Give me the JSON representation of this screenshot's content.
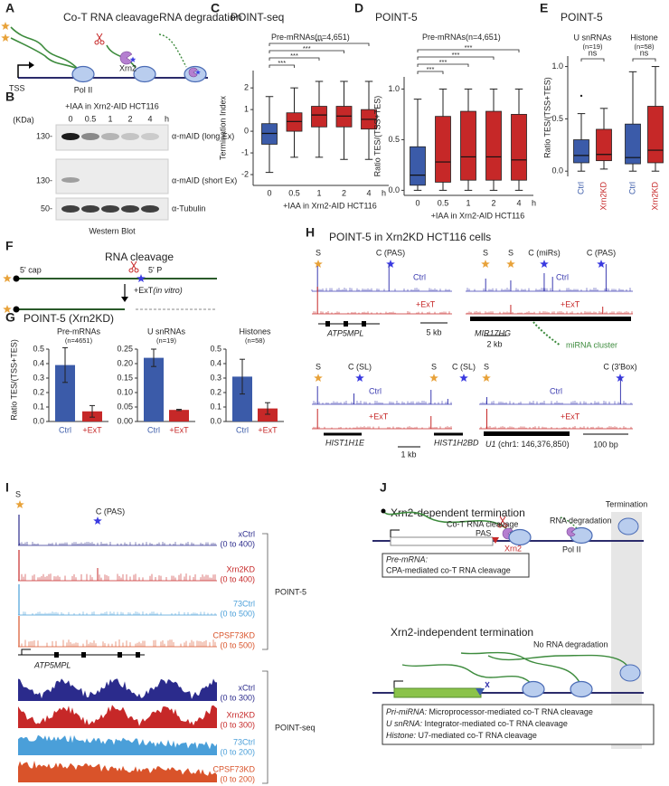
{
  "panel_labels": [
    "A",
    "B",
    "C",
    "D",
    "E",
    "F",
    "G",
    "H",
    "I",
    "J"
  ],
  "panel_a": {
    "cleavage": "Co-T RNA cleavage",
    "degradation": "RNA degradation",
    "tss": "TSS",
    "pol": "Pol II",
    "xrn2": "Xrn2"
  },
  "panel_b": {
    "treatment": "+IAA in Xrn2-AID HCT116",
    "lanes": [
      "0",
      "0.5",
      "1",
      "2",
      "4"
    ],
    "unit": "h",
    "kda": "(KDa)",
    "markers": [
      "130-",
      "130-",
      "50-"
    ],
    "blots": [
      "α-mAID (long Ex)",
      "α-mAID (short Ex)",
      "α-Tubulin"
    ],
    "caption": "Western Blot"
  },
  "panel_f": {
    "cleavage": "RNA cleavage",
    "cap": "5' cap",
    "phosphate": "5' P",
    "treatment": "+ExT",
    "condition": "(in vitro)"
  },
  "panel_g": {
    "title": "POINT-5 (Xrn2KD)"
  },
  "panel_h": {
    "title": "POINT-5 in Xrn2KD HCT116 cells",
    "examples": [
      {
        "sites": [
          "S",
          "C (PAS)"
        ],
        "ctrl": "Ctrl",
        "ext": "+ExT",
        "genes": [
          "ATP5MPL"
        ],
        "scale": "5 kb"
      },
      {
        "sites": [
          "S",
          "S",
          "C (miRs)",
          "C (PAS)"
        ],
        "ctrl": "Ctrl",
        "ext": "+ExT",
        "genes": [
          "MIR17HG"
        ],
        "scale": "2 kb",
        "note": "miRNA cluster"
      },
      {
        "sites": [
          "S",
          "C (SL)",
          "S",
          "C (SL)"
        ],
        "ctrl": "Ctrl",
        "ext": "+ExT",
        "genes": [
          "HIST1H1E",
          "HIST1H2BD"
        ],
        "scale": "1 kb"
      },
      {
        "sites": [
          "S",
          "C (3'Box)"
        ],
        "ctrl": "Ctrl",
        "ext": "+ExT",
        "genes": [
          "U1"
        ],
        "locus": " (chr1: 146,376,850)",
        "scale": "100 bp"
      }
    ]
  },
  "panel_i": {
    "sites": [
      "S",
      "C (PAS)"
    ],
    "gene": "ATP5MPL",
    "groups": [
      "POINT-5",
      "POINT-seq"
    ],
    "tracks": [
      {
        "name": "xCtrl",
        "range": "(0 to 400)",
        "color": "#2b2b8c"
      },
      {
        "name": "Xrn2KD",
        "range": "(0 to 400)",
        "color": "#c62828"
      },
      {
        "name": "73Ctrl",
        "range": "(0 to 500)",
        "color": "#4a9fd9"
      },
      {
        "name": "CPSF73KD",
        "range": "(0 to 500)",
        "color": "#d9532a"
      },
      {
        "name": "xCtrl",
        "range": "(0 to 300)",
        "color": "#2b2b8c"
      },
      {
        "name": "Xrn2KD",
        "range": "(0 to 300)",
        "color": "#c62828"
      },
      {
        "name": "73Ctrl",
        "range": "(0 to 200)",
        "color": "#4a9fd9"
      },
      {
        "name": "CPSF73KD",
        "range": "(0 to 200)",
        "color": "#d9532a"
      }
    ]
  },
  "panel_j": {
    "dependent": {
      "title": "Xrn2-dependent termination",
      "cleavage": "Co-T RNA cleavage",
      "degradation": "RNA degradation",
      "termination": "Termination",
      "pas": "PAS",
      "xrn2": "Xrn2",
      "pol": "Pol II",
      "notes": [
        {
          "name": "Pre-mRNA:",
          "text": "CPA-mediated co-T RNA cleavage"
        }
      ]
    },
    "independent": {
      "title": "Xrn2-independent termination",
      "degradation": "No RNA degradation",
      "notes": [
        {
          "name": "Pri-miRNA:",
          "text": " Microprocessor-mediated co-T RNA cleavage"
        },
        {
          "name": "U snRNA:",
          "text": " Integrator-mediated co-T RNA cleavage"
        },
        {
          "name": "Histone:",
          "text": " U7-mediated co-T RNA cleavage"
        }
      ]
    }
  },
  "chart_data": [
    {
      "type": "box",
      "title": "POINT-seq",
      "subtitle": "Pre-mRNAs",
      "n_label": "(n=4,651)",
      "ylabel": "Termination Index",
      "xlabel": "+IAA in Xrn2-AID HCT116",
      "categories": [
        "0",
        "0.5",
        "1",
        "2",
        "4"
      ],
      "x_unit": "h",
      "ylim": [
        -2.5,
        2.8
      ],
      "yticks": [
        -2,
        -1,
        0,
        1,
        2
      ],
      "boxes": [
        {
          "color": "#3b5ba9",
          "whislo": -1.9,
          "q1": -0.6,
          "med": -0.1,
          "q3": 0.35,
          "whishi": 1.6
        },
        {
          "color": "#c62828",
          "whislo": -1.2,
          "q1": 0.0,
          "med": 0.45,
          "q3": 0.85,
          "whishi": 2.0
        },
        {
          "color": "#c62828",
          "whislo": -1.2,
          "q1": 0.2,
          "med": 0.75,
          "q3": 1.15,
          "whishi": 2.3
        },
        {
          "color": "#c62828",
          "whislo": -1.3,
          "q1": 0.2,
          "med": 0.7,
          "q3": 1.15,
          "whishi": 2.3
        },
        {
          "color": "#c62828",
          "whislo": -1.3,
          "q1": 0.1,
          "med": 0.55,
          "q3": 1.0,
          "whishi": 2.3
        }
      ],
      "significance": [
        "***",
        "***",
        "***",
        "***"
      ]
    },
    {
      "type": "box",
      "title": "POINT-5",
      "subtitle": "Pre-mRNAs",
      "n_label": "(n=4,651)",
      "ylabel": "Ratio TES/(TSS+TES)",
      "xlabel": "+IAA in Xrn2-AID HCT116",
      "categories": [
        "0",
        "0.5",
        "1",
        "2",
        "4"
      ],
      "x_unit": "h",
      "ylim": [
        -0.05,
        1.12
      ],
      "yticks": [
        {
          "value": 0,
          "label": "0.0"
        },
        0.5,
        {
          "value": 1,
          "label": "1.0"
        }
      ],
      "boxes": [
        {
          "color": "#3b5ba9",
          "whislo": 0.0,
          "q1": 0.05,
          "med": 0.15,
          "q3": 0.43,
          "whishi": 0.9
        },
        {
          "color": "#c62828",
          "whislo": 0.0,
          "q1": 0.08,
          "med": 0.28,
          "q3": 0.73,
          "whishi": 1.0
        },
        {
          "color": "#c62828",
          "whislo": 0.0,
          "q1": 0.1,
          "med": 0.33,
          "q3": 0.78,
          "whishi": 1.0
        },
        {
          "color": "#c62828",
          "whislo": 0.0,
          "q1": 0.1,
          "med": 0.33,
          "q3": 0.78,
          "whishi": 1.0
        },
        {
          "color": "#c62828",
          "whislo": 0.0,
          "q1": 0.1,
          "med": 0.3,
          "q3": 0.75,
          "whishi": 1.0
        }
      ],
      "significance": [
        "***",
        "***",
        "***",
        "***"
      ]
    },
    {
      "type": "box",
      "title": "POINT-5",
      "ylabel": "Ratio TES/(TSS+TES)",
      "groups": [
        "U snRNAs",
        "Histone"
      ],
      "n_labels": [
        "(n=19)",
        "(n=58)"
      ],
      "categories": [
        "Ctrl",
        "Xrn2KD",
        "Ctrl",
        "Xrn2KD"
      ],
      "ylim": [
        -0.05,
        1.1
      ],
      "yticks": [
        {
          "value": 0,
          "label": "0.0"
        },
        0.5,
        {
          "value": 1,
          "label": "1.0"
        }
      ],
      "boxes": [
        {
          "color": "#3b5ba9",
          "whislo": 0.0,
          "q1": 0.08,
          "med": 0.15,
          "q3": 0.3,
          "whishi": 0.55,
          "outliers": [
            0.72
          ]
        },
        {
          "color": "#c62828",
          "whislo": 0.02,
          "q1": 0.1,
          "med": 0.16,
          "q3": 0.4,
          "whishi": 0.6
        },
        {
          "color": "#3b5ba9",
          "whislo": 0.0,
          "q1": 0.07,
          "med": 0.13,
          "q3": 0.45,
          "whishi": 0.95
        },
        {
          "color": "#c62828",
          "whislo": 0.0,
          "q1": 0.08,
          "med": 0.2,
          "q3": 0.62,
          "whishi": 1.0
        }
      ],
      "significance": [
        "ns",
        "ns"
      ]
    },
    {
      "type": "bar",
      "title": "Pre-mRNAs",
      "n_label": "(n=4651)",
      "ylabel": "Ratio TES/(TSS+TES)",
      "categories": [
        "Ctrl",
        "+ExT"
      ],
      "colors": [
        "#3b5ba9",
        "#c62828"
      ],
      "values": [
        0.39,
        0.07
      ],
      "errors": [
        0.12,
        0.04
      ],
      "ylim": [
        0,
        0.5
      ],
      "yticks": [
        {
          "value": 0,
          "label": "0.0"
        },
        0.1,
        0.2,
        0.3,
        0.4,
        0.5
      ]
    },
    {
      "type": "bar",
      "title": "U snRNAs",
      "n_label": "(n=19)",
      "categories": [
        "Ctrl",
        "+ExT"
      ],
      "colors": [
        "#3b5ba9",
        "#c62828"
      ],
      "values": [
        0.22,
        0.04
      ],
      "errors": [
        0.03,
        0.002
      ],
      "ylim": [
        0,
        0.25
      ],
      "yticks": [
        {
          "value": 0,
          "label": "0.00"
        },
        0.05,
        {
          "value": 0.1,
          "label": "0.10"
        },
        0.15,
        {
          "value": 0.2,
          "label": "0.20"
        },
        0.25
      ]
    },
    {
      "type": "bar",
      "title": "Histones",
      "n_label": "(n=58)",
      "categories": [
        "Ctrl",
        "+ExT"
      ],
      "colors": [
        "#3b5ba9",
        "#c62828"
      ],
      "values": [
        0.31,
        0.09
      ],
      "errors": [
        0.12,
        0.04
      ],
      "ylim": [
        0,
        0.5
      ],
      "yticks": [
        {
          "value": 0,
          "label": "0.0"
        },
        0.1,
        0.2,
        0.3,
        0.4,
        0.5
      ]
    }
  ]
}
